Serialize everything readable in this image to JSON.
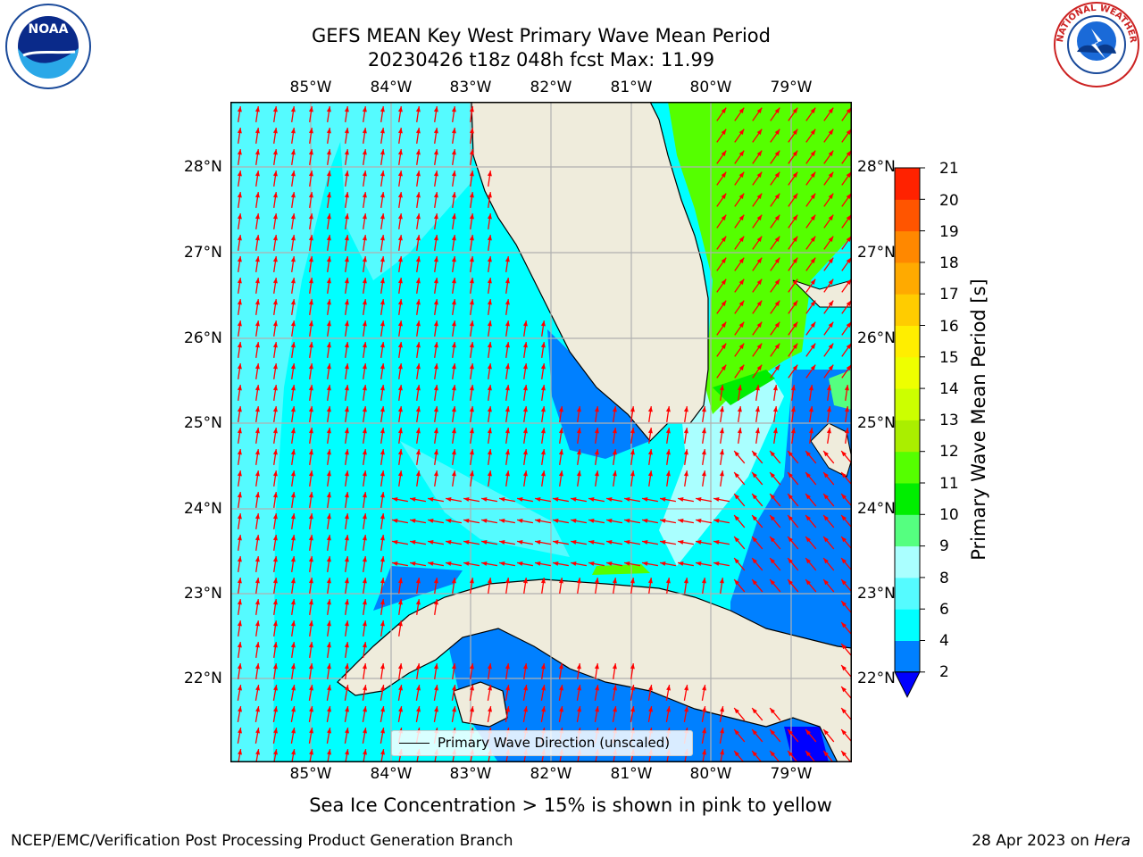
{
  "title": {
    "line1": "GEFS MEAN Key West Primary Wave Mean Period",
    "line2": "20230426 t18z 048h fcst   Max: 11.99"
  },
  "map": {
    "lon_labels": [
      "85°W",
      "84°W",
      "83°W",
      "82°W",
      "81°W",
      "80°W",
      "79°W"
    ],
    "lat_labels": [
      "28°N",
      "27°N",
      "26°N",
      "25°N",
      "24°N",
      "23°N",
      "22°N"
    ],
    "colors": {
      "land": "#efecdc",
      "ocean_4_6": "#00ffff",
      "ocean_6_8": "#55fbff",
      "ocean_2_4": "#0080ff",
      "green_10_11": "#55ff00",
      "grid": "#b0b0b0",
      "arrow": "#ff0000"
    },
    "legend_label": "Primary Wave Direction (unscaled)"
  },
  "colorbar": {
    "title": "Primary Wave Mean Period [s]",
    "ticks": [
      "2",
      "4",
      "6",
      "8",
      "9",
      "10",
      "11",
      "12",
      "13",
      "14",
      "15",
      "16",
      "17",
      "18",
      "19",
      "20",
      "21"
    ],
    "colors": [
      "#0000ff",
      "#0080ff",
      "#00ffff",
      "#55fbff",
      "#aaffff",
      "#55ff80",
      "#00ee00",
      "#55ff00",
      "#aaee00",
      "#ccff00",
      "#eeff00",
      "#ffee00",
      "#ffcc00",
      "#ffaa00",
      "#ff8800",
      "#ff5500",
      "#ff2200",
      "#ff0000"
    ]
  },
  "subtitle": "Sea Ice Concentration > 15% is shown in pink to yellow",
  "footer": {
    "left": "NCEP/EMC/Verification Post Processing Product Generation Branch",
    "date": "28 Apr 2023 on ",
    "host": "Hera"
  },
  "logos": {
    "left_text": "NOAA",
    "right_text": "NATIONAL WEATHER SERVICE"
  }
}
